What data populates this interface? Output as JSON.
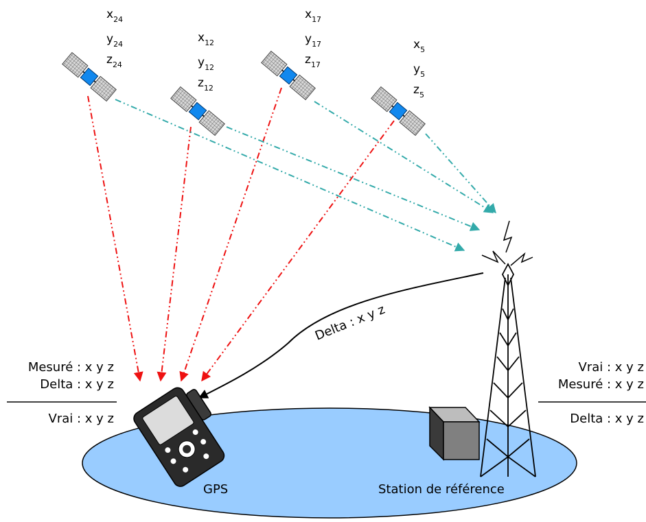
{
  "satellites": [
    {
      "x": "x",
      "x_sub": "24",
      "y": "y",
      "y_sub": "24",
      "z": "z",
      "z_sub": "24"
    },
    {
      "x": "x",
      "x_sub": "12",
      "y": "y",
      "y_sub": "12",
      "z": "z",
      "z_sub": "12"
    },
    {
      "x": "x",
      "x_sub": "17",
      "y": "y",
      "y_sub": "17",
      "z": "z",
      "z_sub": "17"
    },
    {
      "x": "x",
      "x_sub": "5",
      "y": "y",
      "y_sub": "5",
      "z": "z",
      "z_sub": "5"
    }
  ],
  "left_panel": {
    "line1": "Mesuré : x y z",
    "line2": "Delta : x y z",
    "line3": "Vrai : x y z"
  },
  "right_panel": {
    "line1": "Vrai : x y z",
    "line2": "Mesuré : x y z",
    "line3": "Delta : x y z"
  },
  "link_label": "Delta : x y z",
  "gps_label": "GPS",
  "station_label": "Station de référence",
  "colors": {
    "ground": "#99ccff",
    "gps_signal": "#ee1111",
    "station_signal": "#33aaaa",
    "panel_blue": "#1188ee"
  }
}
